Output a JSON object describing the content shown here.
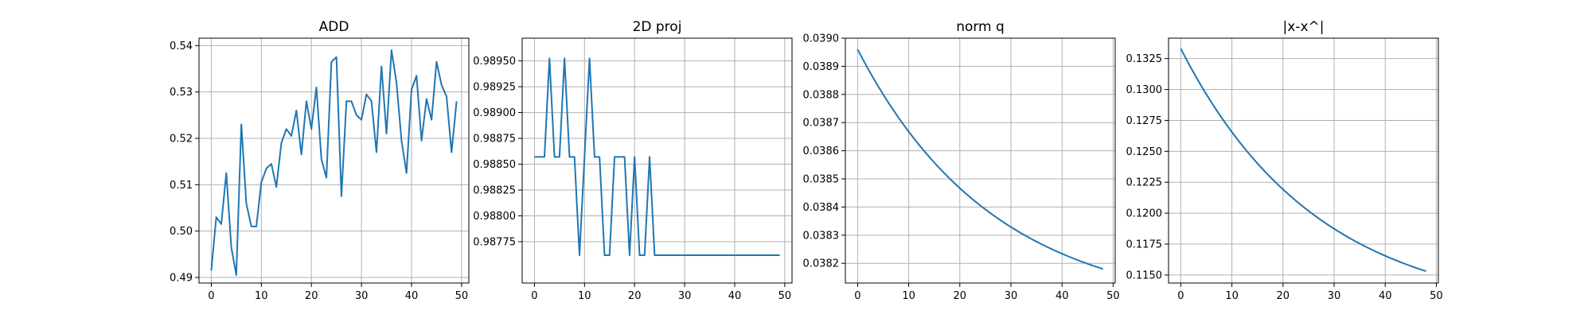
{
  "chart_data": [
    {
      "type": "line",
      "title": "ADD",
      "xlabel": "",
      "ylabel": "",
      "xlim": [
        -2.45,
        51.45
      ],
      "ylim": [
        0.4888,
        0.5416
      ],
      "xticks": [
        0,
        10,
        20,
        30,
        40,
        50
      ],
      "yticks": [
        0.49,
        0.5,
        0.51,
        0.52,
        0.53,
        0.54
      ],
      "ytick_labels": [
        "0.49",
        "0.50",
        "0.51",
        "0.52",
        "0.53",
        "0.54"
      ],
      "grid": true,
      "color": "#1f77b4",
      "x": [
        0,
        1,
        2,
        3,
        4,
        5,
        6,
        7,
        8,
        9,
        10,
        11,
        12,
        13,
        14,
        15,
        16,
        17,
        18,
        19,
        20,
        21,
        22,
        23,
        24,
        25,
        26,
        27,
        28,
        29,
        30,
        31,
        32,
        33,
        34,
        35,
        36,
        37,
        38,
        39,
        40,
        41,
        42,
        43,
        44,
        45,
        46,
        47,
        48,
        49
      ],
      "values": [
        0.4915,
        0.503,
        0.5015,
        0.5125,
        0.4965,
        0.4905,
        0.523,
        0.506,
        0.501,
        0.501,
        0.5105,
        0.5135,
        0.5145,
        0.5095,
        0.519,
        0.522,
        0.5205,
        0.526,
        0.5165,
        0.528,
        0.522,
        0.531,
        0.5155,
        0.5115,
        0.5365,
        0.5375,
        0.5075,
        0.528,
        0.528,
        0.525,
        0.524,
        0.5295,
        0.528,
        0.517,
        0.5355,
        0.521,
        0.539,
        0.532,
        0.5195,
        0.5125,
        0.5305,
        0.5335,
        0.5195,
        0.5285,
        0.524,
        0.5365,
        0.5315,
        0.529,
        0.517,
        0.528
      ]
    },
    {
      "type": "line",
      "title": "2D proj",
      "xlabel": "",
      "ylabel": "",
      "xlim": [
        -2.45,
        51.45
      ],
      "ylim": [
        0.98735,
        0.98972
      ],
      "xticks": [
        0,
        10,
        20,
        30,
        40,
        50
      ],
      "yticks": [
        0.98775,
        0.988,
        0.98825,
        0.9885,
        0.98875,
        0.989,
        0.98925,
        0.9895
      ],
      "ytick_labels": [
        "0.98775",
        "0.98800",
        "0.98825",
        "0.98850",
        "0.98875",
        "0.98900",
        "0.98925",
        "0.98950"
      ],
      "grid": true,
      "color": "#1f77b4",
      "x": [
        0,
        1,
        2,
        3,
        4,
        5,
        6,
        7,
        8,
        9,
        10,
        11,
        12,
        13,
        14,
        15,
        16,
        17,
        18,
        19,
        20,
        21,
        22,
        23,
        24,
        25,
        26,
        27,
        28,
        29,
        30,
        31,
        32,
        33,
        34,
        35,
        36,
        37,
        38,
        39,
        40,
        41,
        42,
        43,
        44,
        45,
        46,
        47,
        48,
        49
      ],
      "values": [
        0.988571,
        0.988571,
        0.988571,
        0.989524,
        0.988571,
        0.988571,
        0.989524,
        0.988571,
        0.988571,
        0.987619,
        0.988571,
        0.989524,
        0.988571,
        0.988571,
        0.987619,
        0.987619,
        0.988571,
        0.988571,
        0.988571,
        0.987619,
        0.988571,
        0.987619,
        0.987619,
        0.988571,
        0.987619,
        0.987619,
        0.987619,
        0.987619,
        0.987619,
        0.987619,
        0.987619,
        0.987619,
        0.987619,
        0.987619,
        0.987619,
        0.987619,
        0.987619,
        0.987619,
        0.987619,
        0.987619,
        0.987619,
        0.987619,
        0.987619,
        0.987619,
        0.987619,
        0.987619,
        0.987619,
        0.987619,
        0.987619,
        0.987619
      ]
    },
    {
      "type": "line",
      "title": "norm q",
      "xlabel": "",
      "ylabel": "",
      "xlim": [
        -2.4,
        50.4
      ],
      "ylim": [
        0.03813,
        0.039
      ],
      "xticks": [
        0,
        10,
        20,
        30,
        40,
        50
      ],
      "yticks": [
        0.0382,
        0.0383,
        0.0384,
        0.0385,
        0.0386,
        0.0387,
        0.0388,
        0.0389,
        0.039
      ],
      "ytick_labels": [
        "0.0382",
        "0.0383",
        "0.0384",
        "0.0385",
        "0.0386",
        "0.0387",
        "0.0388",
        "0.0389",
        "0.0390"
      ],
      "grid": true,
      "color": "#1f77b4",
      "x": [
        0,
        48
      ],
      "curve": {
        "start": 0.03896,
        "end": 0.03818,
        "shape": "decay"
      },
      "values": [
        0.03896,
        0.03818
      ]
    },
    {
      "type": "line",
      "title": "|x-x^|",
      "xlabel": "",
      "ylabel": "",
      "xlim": [
        -2.4,
        50.4
      ],
      "ylim": [
        0.11435,
        0.13415
      ],
      "xticks": [
        0,
        10,
        20,
        30,
        40,
        50
      ],
      "yticks": [
        0.115,
        0.1175,
        0.12,
        0.1225,
        0.125,
        0.1275,
        0.13,
        0.1325
      ],
      "ytick_labels": [
        "0.1150",
        "0.1175",
        "0.1200",
        "0.1225",
        "0.1250",
        "0.1275",
        "0.1300",
        "0.1325"
      ],
      "grid": true,
      "color": "#1f77b4",
      "x": [
        0,
        48
      ],
      "curve": {
        "start": 0.1333,
        "end": 0.1153,
        "shape": "decay"
      },
      "values": [
        0.1333,
        0.1153
      ]
    }
  ]
}
